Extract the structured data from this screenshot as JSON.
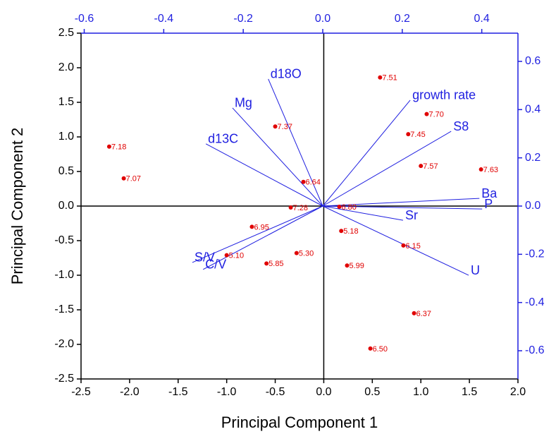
{
  "chart_data": {
    "type": "biplot",
    "x_label": "Principal Component 1",
    "y_label": "Principal Component 2",
    "xlim": [
      -2.5,
      2.0
    ],
    "ylim": [
      -2.5,
      2.5
    ],
    "xticks": [
      {
        "value": -2.5,
        "label": "-2.5"
      },
      {
        "value": -2.0,
        "label": "-2.0"
      },
      {
        "value": -1.5,
        "label": "-1.5"
      },
      {
        "value": -1.0,
        "label": "-1.0"
      },
      {
        "value": -0.5,
        "label": "-0.5"
      },
      {
        "value": 0,
        "label": "0.0"
      },
      0.5,
      {
        "value": 1.0,
        "label": "1.0"
      },
      1.5,
      {
        "value": 2.0,
        "label": "2.0"
      }
    ],
    "yticks": [
      {
        "value": -2.5,
        "label": "-2.5"
      },
      {
        "value": -2.0,
        "label": "-2.0"
      },
      {
        "value": -1.5,
        "label": "-1.5"
      },
      {
        "value": -1.0,
        "label": "-1.0"
      },
      {
        "value": -0.5,
        "label": "-0.5"
      },
      {
        "value": 0,
        "label": "0.0"
      },
      0.5,
      {
        "value": 1.0,
        "label": "1.0"
      },
      1.5,
      {
        "value": 2.0,
        "label": "2.0"
      },
      2.5
    ],
    "x2lim": [
      -0.608,
      0.491
    ],
    "y2lim": [
      -0.717,
      0.717
    ],
    "x2ticks": [
      -0.6,
      -0.4,
      -0.2,
      {
        "value": 0,
        "label": "0.0"
      },
      0.2,
      0.4
    ],
    "y2ticks": [
      -0.6,
      -0.4,
      -0.2,
      {
        "value": 0,
        "label": "0.0"
      },
      0.2,
      0.4,
      0.6
    ],
    "points": {
      "color": "#e00000",
      "labels": [
        "7.51",
        "7.70",
        "7.45",
        "7.37",
        "7.18",
        "7.07",
        "7.57",
        "7.63",
        "6.64",
        "7.28",
        "6.80",
        "6.95",
        "5.18",
        "6.15",
        "5.10",
        "5.30",
        "5.85",
        "5.99",
        "6.37",
        "6.50"
      ],
      "x": [
        0.58,
        1.06,
        0.87,
        -0.5,
        -2.21,
        -2.06,
        1.0,
        1.62,
        -0.21,
        -0.34,
        0.16,
        -0.74,
        0.18,
        0.82,
        -1.0,
        -0.28,
        -0.59,
        0.24,
        0.93,
        0.48
      ],
      "y": [
        1.86,
        1.33,
        1.04,
        1.15,
        0.86,
        0.4,
        0.58,
        0.53,
        0.35,
        -0.02,
        -0.01,
        -0.3,
        -0.36,
        -0.57,
        -0.71,
        -0.68,
        -0.83,
        -0.86,
        -1.55,
        -2.06
      ]
    },
    "loadings": {
      "color": "#1f1fe0",
      "labels": [
        "d18O",
        "Mg",
        "d13C",
        "growth rate",
        "S8",
        "Ba",
        "P",
        "Sr",
        "U",
        "S/V",
        "C/V"
      ],
      "x": [
        -0.137,
        -0.227,
        -0.294,
        0.22,
        0.323,
        0.394,
        0.401,
        0.202,
        0.367,
        -0.328,
        -0.301
      ],
      "y": [
        0.527,
        0.407,
        0.258,
        0.439,
        0.31,
        0.032,
        -0.012,
        -0.059,
        -0.287,
        -0.234,
        -0.263
      ]
    }
  }
}
